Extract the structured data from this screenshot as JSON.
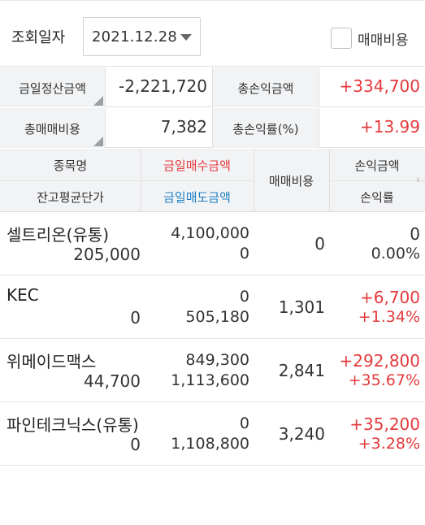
{
  "filter": {
    "query_date_label": "조회일자",
    "date_value": "2021.12.28",
    "fee_checkbox_label": "매매비용",
    "fee_checked": false
  },
  "summary": {
    "today_settlement_label": "금일정산금액",
    "today_settlement_value": "-2,221,720",
    "total_pl_label": "총손익금액",
    "total_pl_value": "+334,700",
    "total_fee_label": "총매매비용",
    "total_fee_value": "7,382",
    "total_pl_rate_label": "총손익률(%)",
    "total_pl_rate_value": "+13.99"
  },
  "headers": {
    "stock_name": "종목명",
    "today_buy_amount": "금일매수금액",
    "fee": "매매비용",
    "pl_amount": "손익금액",
    "avg_price": "잔고평균단가",
    "today_sell_amount": "금일매도금액",
    "pl_rate": "손익률",
    "next_arrow": "›"
  },
  "colors": {
    "positive": "#e4393c",
    "sell_header": "#1d7fc4",
    "header_bg": "#f2f3f5"
  },
  "rows": [
    {
      "name": "셀트리온(유통)",
      "avg": "205,000",
      "buy": "4,100,000",
      "sell": "0",
      "fee": "0",
      "pl": "0",
      "rate": "0.00%",
      "positive": false
    },
    {
      "name": "KEC",
      "avg": "0",
      "buy": "0",
      "sell": "505,180",
      "fee": "1,301",
      "pl": "+6,700",
      "rate": "+1.34%",
      "positive": true
    },
    {
      "name": "위메이드맥스",
      "avg": "44,700",
      "buy": "849,300",
      "sell": "1,113,600",
      "fee": "2,841",
      "pl": "+292,800",
      "rate": "+35.67%",
      "positive": true
    },
    {
      "name": "파인테크닉스(유통)",
      "avg": "0",
      "buy": "0",
      "sell": "1,108,800",
      "fee": "3,240",
      "pl": "+35,200",
      "rate": "+3.28%",
      "positive": true
    }
  ]
}
